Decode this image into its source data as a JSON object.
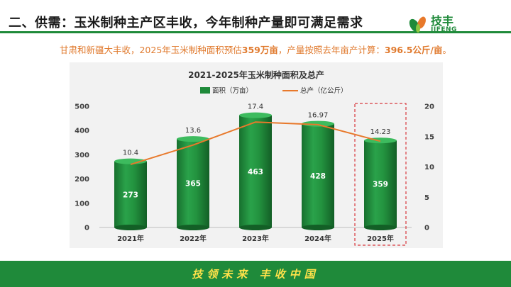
{
  "header": {
    "title": "二、供需：玉米制种主产区丰收，今年制种产量即可满足需求"
  },
  "logo": {
    "name_cn": "技丰",
    "name_en": "JIFENG",
    "brand_color": "#1f8a3a"
  },
  "subtitle": {
    "part1": "甘肃和新疆大丰收，2025年玉米制种面积预估",
    "area_value": "359万亩",
    "part2": "，产量按照去年亩产计算：",
    "yield_value": "396.5公斤/亩",
    "end": "。"
  },
  "footer": {
    "slogan": "技领未来  丰收中国"
  },
  "chart_data": {
    "type": "bar",
    "title": "2021-2025年玉米制种面积及总产",
    "categories": [
      "2021年",
      "2022年",
      "2023年",
      "2024年",
      "2025年"
    ],
    "series": [
      {
        "name": "面积（万亩）",
        "kind": "bar",
        "axis": "left",
        "color": "#1f8a3a",
        "values": [
          273,
          365,
          463,
          428,
          359
        ]
      },
      {
        "name": "总产（亿公斤）",
        "kind": "line",
        "axis": "right",
        "color": "#e8792b",
        "values": [
          10.4,
          13.6,
          17.4,
          16.97,
          14.23
        ]
      }
    ],
    "left_axis": {
      "ylim": [
        0,
        500
      ],
      "ticks": [
        0,
        100,
        200,
        300,
        400,
        500
      ]
    },
    "right_axis": {
      "ylim": [
        0,
        20
      ],
      "ticks": [
        0,
        5,
        10,
        15,
        20
      ]
    },
    "highlight_category": "2025年",
    "legend_position": "top"
  }
}
